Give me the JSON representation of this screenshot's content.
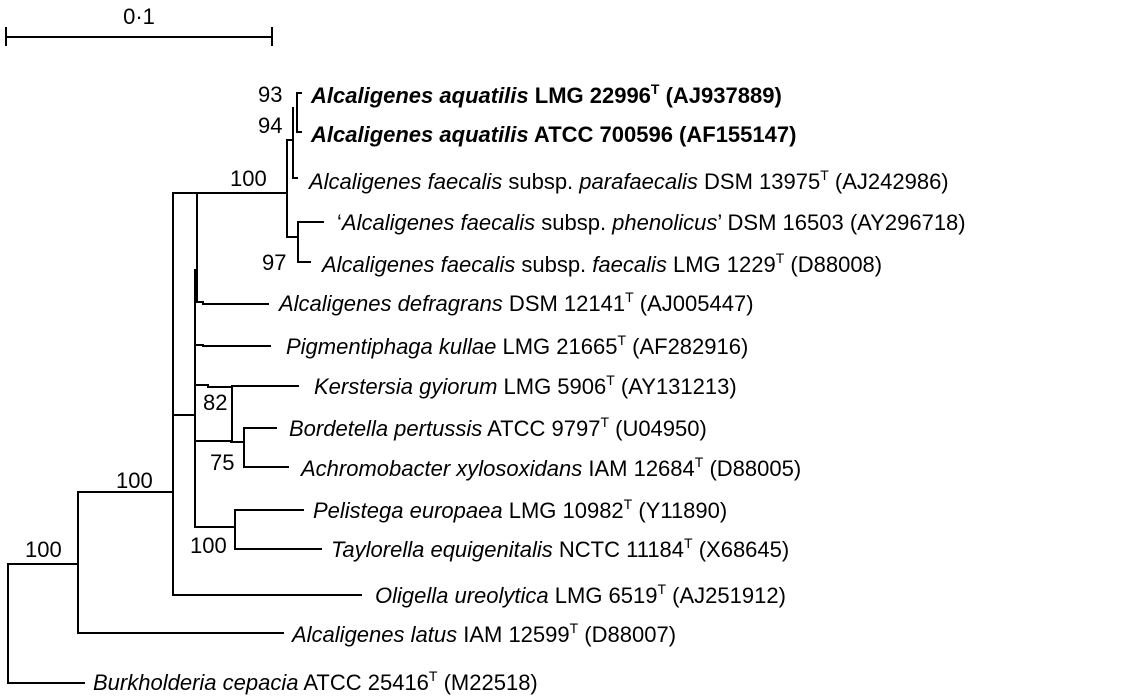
{
  "scale_bar": {
    "label": "0·1"
  },
  "taxa": [
    {
      "id": "aquatilis-lmg",
      "bold": true,
      "parts": [
        {
          "t": "Alcaligenes aquatilis",
          "i": true
        },
        {
          "t": " LMG 22996"
        },
        {
          "t": "T",
          "sup": true
        },
        {
          "t": " (AJ937889)"
        }
      ]
    },
    {
      "id": "aquatilis-atcc",
      "bold": true,
      "parts": [
        {
          "t": "Alcaligenes aquatilis",
          "i": true
        },
        {
          "t": " ATCC 700596 (AF155147)"
        }
      ]
    },
    {
      "id": "faecalis-parafaecalis",
      "bold": false,
      "parts": [
        {
          "t": "Alcaligenes faecalis",
          "i": true
        },
        {
          "t": " subsp. "
        },
        {
          "t": "parafaecalis",
          "i": true
        },
        {
          "t": " DSM 13975"
        },
        {
          "t": "T",
          "sup": true
        },
        {
          "t": " (AJ242986)"
        }
      ]
    },
    {
      "id": "faecalis-phenolicus",
      "bold": false,
      "parts": [
        {
          "t": "‘"
        },
        {
          "t": "Alcaligenes faecalis",
          "i": true
        },
        {
          "t": " subsp. "
        },
        {
          "t": "phenolicus",
          "i": true
        },
        {
          "t": "’ DSM 16503 (AY296718)"
        }
      ]
    },
    {
      "id": "faecalis-faecalis",
      "bold": false,
      "parts": [
        {
          "t": "Alcaligenes faecalis",
          "i": true
        },
        {
          "t": " subsp. "
        },
        {
          "t": "faecalis",
          "i": true
        },
        {
          "t": " LMG 1229"
        },
        {
          "t": "T",
          "sup": true
        },
        {
          "t": " (D88008)"
        }
      ]
    },
    {
      "id": "defragrans",
      "bold": false,
      "parts": [
        {
          "t": "Alcaligenes defragrans",
          "i": true
        },
        {
          "t": " DSM 12141"
        },
        {
          "t": "T",
          "sup": true
        },
        {
          "t": " (AJ005447)"
        }
      ]
    },
    {
      "id": "pigmentiphaga",
      "bold": false,
      "parts": [
        {
          "t": "Pigmentiphaga kullae",
          "i": true
        },
        {
          "t": " LMG 21665"
        },
        {
          "t": "T",
          "sup": true
        },
        {
          "t": " (AF282916)"
        }
      ]
    },
    {
      "id": "kerstersia",
      "bold": false,
      "parts": [
        {
          "t": "Kerstersia gyiorum",
          "i": true
        },
        {
          "t": " LMG 5906"
        },
        {
          "t": "T",
          "sup": true
        },
        {
          "t": " (AY131213)"
        }
      ]
    },
    {
      "id": "bordetella",
      "bold": false,
      "parts": [
        {
          "t": "Bordetella pertussis",
          "i": true
        },
        {
          "t": " ATCC 9797"
        },
        {
          "t": "T",
          "sup": true
        },
        {
          "t": " (U04950)"
        }
      ]
    },
    {
      "id": "achromobacter",
      "bold": false,
      "parts": [
        {
          "t": "Achromobacter xylosoxidans",
          "i": true
        },
        {
          "t": " IAM 12684"
        },
        {
          "t": "T",
          "sup": true
        },
        {
          "t": " (D88005)"
        }
      ]
    },
    {
      "id": "pelistega",
      "bold": false,
      "parts": [
        {
          "t": "Pelistega europaea",
          "i": true
        },
        {
          "t": " LMG 10982"
        },
        {
          "t": "T",
          "sup": true
        },
        {
          "t": " (Y11890)"
        }
      ]
    },
    {
      "id": "taylorella",
      "bold": false,
      "parts": [
        {
          "t": "Taylorella equigenitalis",
          "i": true
        },
        {
          "t": " NCTC 11184"
        },
        {
          "t": "T",
          "sup": true
        },
        {
          "t": " (X68645)"
        }
      ]
    },
    {
      "id": "oligella",
      "bold": false,
      "parts": [
        {
          "t": "Oligella ureolytica",
          "i": true
        },
        {
          "t": " LMG 6519"
        },
        {
          "t": "T",
          "sup": true
        },
        {
          "t": " (AJ251912)"
        }
      ]
    },
    {
      "id": "alcaligenes-latus",
      "bold": false,
      "parts": [
        {
          "t": "Alcaligenes latus",
          "i": true
        },
        {
          "t": " IAM 12599"
        },
        {
          "t": "T",
          "sup": true
        },
        {
          "t": " (D88007)"
        }
      ]
    },
    {
      "id": "burkholderia",
      "bold": false,
      "parts": [
        {
          "t": "Burkholderia cepacia",
          "i": true
        },
        {
          "t": " ATCC 25416"
        },
        {
          "t": "T",
          "sup": true
        },
        {
          "t": " (M22518)"
        }
      ]
    }
  ],
  "bootstrap": [
    {
      "id": "aquatilis-pair",
      "value": "93"
    },
    {
      "id": "aquatilis-atcc-node",
      "value": "94"
    },
    {
      "id": "alcaligenes-clade",
      "value": "100"
    },
    {
      "id": "faecalis-faecalis-node",
      "value": "97"
    },
    {
      "id": "kerstersia-node",
      "value": "82"
    },
    {
      "id": "bordetella-achromobacter",
      "value": "75"
    },
    {
      "id": "pelistega-taylorella",
      "value": "100"
    },
    {
      "id": "ingroup",
      "value": "100"
    },
    {
      "id": "root",
      "value": "100"
    }
  ]
}
